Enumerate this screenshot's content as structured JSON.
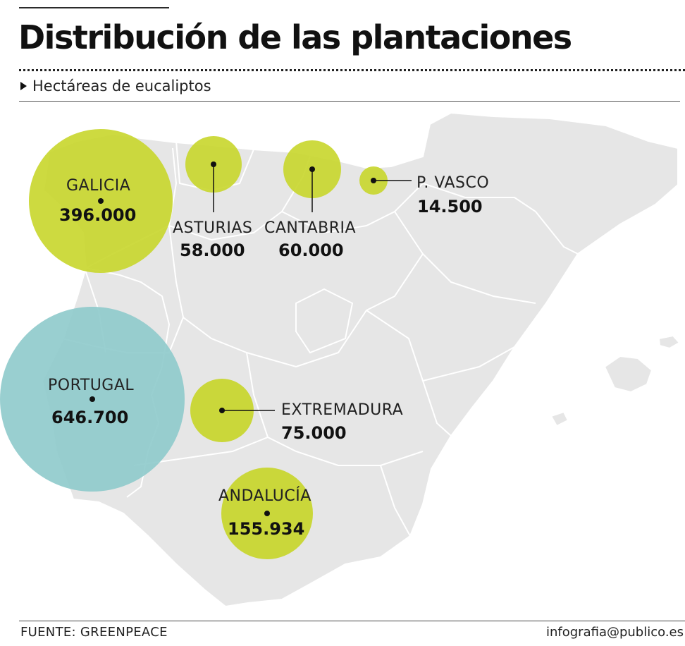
{
  "header": {
    "title": "Distribución de las plantaciones",
    "subtitle": "Hectáreas de eucaliptos"
  },
  "colors": {
    "land": "#e6e6e6",
    "border": "#ffffff",
    "spain_bubble": "#c8d62b",
    "portugal_bubble": "#8ecacb"
  },
  "regions": [
    {
      "name": "GALICIA",
      "value": "396.000"
    },
    {
      "name": "ASTURIAS",
      "value": "58.000"
    },
    {
      "name": "CANTABRIA",
      "value": "60.000"
    },
    {
      "name": "P. VASCO",
      "value": "14.500"
    },
    {
      "name": "PORTUGAL",
      "value": "646.700"
    },
    {
      "name": "EXTREMADURA",
      "value": "75.000"
    },
    {
      "name": "ANDALUCÍA",
      "value": "155.934"
    }
  ],
  "chart_data": {
    "type": "bubble-map",
    "unit": "Hectáreas de eucaliptos",
    "points": [
      {
        "region": "GALICIA",
        "value": 396000
      },
      {
        "region": "ASTURIAS",
        "value": 58000
      },
      {
        "region": "CANTABRIA",
        "value": 60000
      },
      {
        "region": "P. VASCO",
        "value": 14500
      },
      {
        "region": "PORTUGAL",
        "value": 646700
      },
      {
        "region": "EXTREMADURA",
        "value": 75000
      },
      {
        "region": "ANDALUCÍA",
        "value": 155934
      }
    ]
  },
  "footer": {
    "source": "FUENTE: GREENPEACE",
    "credit": "infografia@publico.es"
  }
}
